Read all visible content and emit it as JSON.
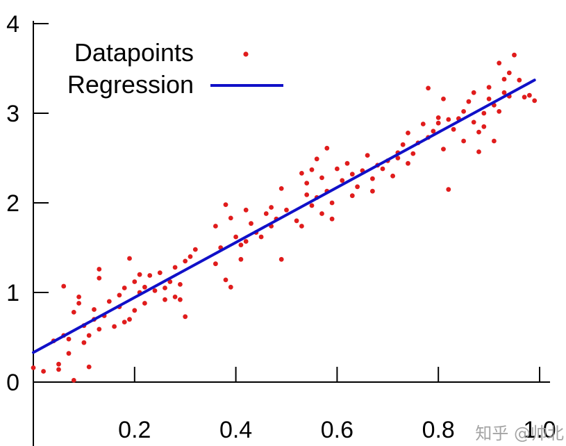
{
  "chart_data": {
    "type": "scatter",
    "title": "",
    "xlabel": "",
    "ylabel": "",
    "xlim": [
      0.0,
      1.0
    ],
    "ylim": [
      0,
      4
    ],
    "grid": false,
    "legend_position": "top-left",
    "x_ticks": [
      0.2,
      0.4,
      0.6,
      0.8,
      1.0
    ],
    "x_tick_labels": [
      "0.2",
      "0.4",
      "0.6",
      "0.8",
      "1.0"
    ],
    "y_ticks": [
      0,
      1,
      2,
      3,
      4
    ],
    "y_tick_labels": [
      "0",
      "1",
      "2",
      "3",
      "4"
    ],
    "colors": {
      "points": "#e01c1c",
      "line": "#1010c8"
    },
    "legend": [
      {
        "label": "Datapoints",
        "marker": "dot"
      },
      {
        "label": "Regression",
        "marker": "line"
      }
    ],
    "series": [
      {
        "name": "Datapoints",
        "kind": "points",
        "points": [
          [
            0.0,
            0.16
          ],
          [
            0.02,
            0.12
          ],
          [
            0.04,
            0.46
          ],
          [
            0.05,
            0.2
          ],
          [
            0.05,
            0.14
          ],
          [
            0.06,
            1.07
          ],
          [
            0.06,
            0.52
          ],
          [
            0.07,
            0.32
          ],
          [
            0.07,
            0.48
          ],
          [
            0.08,
            0.02
          ],
          [
            0.08,
            0.78
          ],
          [
            0.09,
            0.88
          ],
          [
            0.09,
            0.95
          ],
          [
            0.1,
            0.44
          ],
          [
            0.1,
            0.63
          ],
          [
            0.11,
            0.17
          ],
          [
            0.11,
            0.52
          ],
          [
            0.12,
            0.7
          ],
          [
            0.12,
            0.81
          ],
          [
            0.13,
            1.16
          ],
          [
            0.13,
            1.26
          ],
          [
            0.13,
            0.59
          ],
          [
            0.14,
            0.74
          ],
          [
            0.15,
            0.9
          ],
          [
            0.16,
            0.62
          ],
          [
            0.17,
            0.97
          ],
          [
            0.17,
            0.84
          ],
          [
            0.18,
            1.05
          ],
          [
            0.18,
            0.67
          ],
          [
            0.19,
            1.38
          ],
          [
            0.19,
            0.7
          ],
          [
            0.2,
            1.12
          ],
          [
            0.2,
            0.8
          ],
          [
            0.21,
            1.0
          ],
          [
            0.21,
            1.2
          ],
          [
            0.22,
            0.88
          ],
          [
            0.22,
            1.06
          ],
          [
            0.23,
            1.19
          ],
          [
            0.24,
            1.02
          ],
          [
            0.25,
            1.22
          ],
          [
            0.26,
            1.05
          ],
          [
            0.26,
            0.92
          ],
          [
            0.27,
            1.12
          ],
          [
            0.28,
            0.95
          ],
          [
            0.28,
            1.28
          ],
          [
            0.29,
            1.09
          ],
          [
            0.29,
            0.92
          ],
          [
            0.3,
            1.35
          ],
          [
            0.3,
            0.73
          ],
          [
            0.31,
            1.4
          ],
          [
            0.32,
            1.48
          ],
          [
            0.36,
            1.32
          ],
          [
            0.36,
            1.74
          ],
          [
            0.37,
            1.5
          ],
          [
            0.38,
            1.14
          ],
          [
            0.38,
            1.98
          ],
          [
            0.39,
            1.06
          ],
          [
            0.39,
            1.83
          ],
          [
            0.4,
            1.62
          ],
          [
            0.41,
            1.53
          ],
          [
            0.41,
            1.37
          ],
          [
            0.42,
            1.92
          ],
          [
            0.42,
            1.57
          ],
          [
            0.43,
            1.77
          ],
          [
            0.44,
            1.67
          ],
          [
            0.45,
            1.62
          ],
          [
            0.46,
            1.88
          ],
          [
            0.47,
            1.74
          ],
          [
            0.47,
            1.95
          ],
          [
            0.48,
            1.82
          ],
          [
            0.49,
            1.37
          ],
          [
            0.49,
            2.16
          ],
          [
            0.5,
            1.92
          ],
          [
            0.52,
            1.8
          ],
          [
            0.53,
            1.74
          ],
          [
            0.53,
            2.33
          ],
          [
            0.54,
            2.09
          ],
          [
            0.54,
            2.22
          ],
          [
            0.55,
            1.97
          ],
          [
            0.55,
            2.37
          ],
          [
            0.56,
            2.06
          ],
          [
            0.56,
            2.49
          ],
          [
            0.57,
            2.28
          ],
          [
            0.57,
            1.88
          ],
          [
            0.58,
            2.13
          ],
          [
            0.58,
            2.61
          ],
          [
            0.59,
            2.0
          ],
          [
            0.59,
            1.82
          ],
          [
            0.6,
            2.38
          ],
          [
            0.61,
            2.25
          ],
          [
            0.62,
            2.44
          ],
          [
            0.63,
            2.08
          ],
          [
            0.63,
            2.32
          ],
          [
            0.64,
            2.18
          ],
          [
            0.65,
            2.36
          ],
          [
            0.66,
            2.53
          ],
          [
            0.67,
            2.27
          ],
          [
            0.67,
            2.13
          ],
          [
            0.68,
            2.42
          ],
          [
            0.69,
            2.38
          ],
          [
            0.7,
            2.47
          ],
          [
            0.71,
            2.3
          ],
          [
            0.72,
            2.56
          ],
          [
            0.72,
            2.5
          ],
          [
            0.73,
            2.65
          ],
          [
            0.74,
            2.44
          ],
          [
            0.74,
            2.78
          ],
          [
            0.75,
            2.55
          ],
          [
            0.76,
            2.67
          ],
          [
            0.77,
            2.88
          ],
          [
            0.78,
            2.73
          ],
          [
            0.78,
            3.28
          ],
          [
            0.79,
            2.8
          ],
          [
            0.8,
            2.95
          ],
          [
            0.8,
            2.89
          ],
          [
            0.81,
            3.16
          ],
          [
            0.81,
            2.6
          ],
          [
            0.82,
            2.15
          ],
          [
            0.82,
            2.93
          ],
          [
            0.83,
            2.82
          ],
          [
            0.84,
            2.94
          ],
          [
            0.85,
            2.69
          ],
          [
            0.85,
            3.02
          ],
          [
            0.86,
            3.13
          ],
          [
            0.87,
            2.9
          ],
          [
            0.87,
            3.23
          ],
          [
            0.88,
            2.57
          ],
          [
            0.88,
            2.79
          ],
          [
            0.89,
            3.0
          ],
          [
            0.89,
            2.85
          ],
          [
            0.9,
            3.29
          ],
          [
            0.9,
            3.16
          ],
          [
            0.91,
            2.69
          ],
          [
            0.91,
            3.09
          ],
          [
            0.92,
            3.02
          ],
          [
            0.92,
            3.56
          ],
          [
            0.93,
            3.38
          ],
          [
            0.93,
            3.23
          ],
          [
            0.94,
            3.45
          ],
          [
            0.94,
            3.19
          ],
          [
            0.95,
            3.65
          ],
          [
            0.96,
            3.37
          ],
          [
            0.97,
            3.18
          ],
          [
            0.98,
            3.2
          ],
          [
            0.99,
            3.14
          ]
        ]
      },
      {
        "name": "Regression",
        "kind": "line",
        "points": [
          [
            0.0,
            0.33
          ],
          [
            0.99,
            3.37
          ]
        ]
      }
    ]
  },
  "watermark": "知乎 @帅北"
}
